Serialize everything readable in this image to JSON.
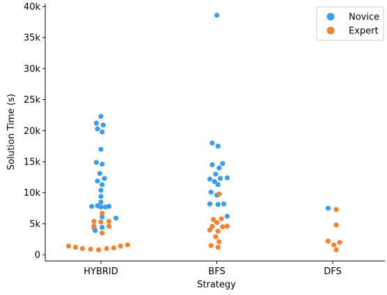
{
  "chart_data": {
    "type": "scatter",
    "subtype": "swarm",
    "xlabel": "Strategy",
    "ylabel": "Solution Time (s)",
    "categories": [
      "HYBRID",
      "BFS",
      "DFS"
    ],
    "ylim": [
      -1000,
      40500
    ],
    "yticks": [
      0,
      5000,
      10000,
      15000,
      20000,
      25000,
      30000,
      35000,
      40000
    ],
    "ytick_labels": [
      "0",
      "5k",
      "10k",
      "15k",
      "20k",
      "25k",
      "30k",
      "35k",
      "40k"
    ],
    "grid": false,
    "legend": {
      "placement": "top-right"
    },
    "series": [
      {
        "name": "Novice",
        "color": "#3b9cf0",
        "points": [
          {
            "category": "HYBRID",
            "offset": 0.0,
            "y": 22300
          },
          {
            "category": "HYBRID",
            "offset": -0.04,
            "y": 21200
          },
          {
            "category": "HYBRID",
            "offset": 0.02,
            "y": 20900
          },
          {
            "category": "HYBRID",
            "offset": -0.03,
            "y": 20300
          },
          {
            "category": "HYBRID",
            "offset": 0.01,
            "y": 19800
          },
          {
            "category": "HYBRID",
            "offset": 0.0,
            "y": 17000
          },
          {
            "category": "HYBRID",
            "offset": -0.04,
            "y": 14900
          },
          {
            "category": "HYBRID",
            "offset": 0.01,
            "y": 14600
          },
          {
            "category": "HYBRID",
            "offset": -0.01,
            "y": 13100
          },
          {
            "category": "HYBRID",
            "offset": 0.03,
            "y": 12300
          },
          {
            "category": "HYBRID",
            "offset": -0.03,
            "y": 11900
          },
          {
            "category": "HYBRID",
            "offset": 0.01,
            "y": 11300
          },
          {
            "category": "HYBRID",
            "offset": 0.0,
            "y": 10400
          },
          {
            "category": "HYBRID",
            "offset": 0.0,
            "y": 9400
          },
          {
            "category": "HYBRID",
            "offset": 0.0,
            "y": 8500
          },
          {
            "category": "HYBRID",
            "offset": -0.08,
            "y": 7800
          },
          {
            "category": "HYBRID",
            "offset": 0.0,
            "y": 7700
          },
          {
            "category": "HYBRID",
            "offset": 0.07,
            "y": 7800
          },
          {
            "category": "HYBRID",
            "offset": -0.03,
            "y": 7900
          },
          {
            "category": "HYBRID",
            "offset": 0.04,
            "y": 7700
          },
          {
            "category": "HYBRID",
            "offset": 0.01,
            "y": 6100
          },
          {
            "category": "HYBRID",
            "offset": 0.13,
            "y": 5900
          },
          {
            "category": "HYBRID",
            "offset": -0.06,
            "y": 4400
          },
          {
            "category": "HYBRID",
            "offset": 0.01,
            "y": 4400
          },
          {
            "category": "HYBRID",
            "offset": -0.05,
            "y": 3900
          },
          {
            "category": "BFS",
            "offset": 0.0,
            "y": 38600
          },
          {
            "category": "BFS",
            "offset": -0.04,
            "y": 18000
          },
          {
            "category": "BFS",
            "offset": 0.01,
            "y": 17500
          },
          {
            "category": "BFS",
            "offset": -0.04,
            "y": 14500
          },
          {
            "category": "BFS",
            "offset": 0.05,
            "y": 14700
          },
          {
            "category": "BFS",
            "offset": 0.02,
            "y": 14000
          },
          {
            "category": "BFS",
            "offset": -0.01,
            "y": 13000
          },
          {
            "category": "BFS",
            "offset": -0.06,
            "y": 12200
          },
          {
            "category": "BFS",
            "offset": 0.03,
            "y": 12300
          },
          {
            "category": "BFS",
            "offset": -0.02,
            "y": 11800
          },
          {
            "category": "BFS",
            "offset": 0.09,
            "y": 12400
          },
          {
            "category": "BFS",
            "offset": 0.01,
            "y": 11300
          },
          {
            "category": "BFS",
            "offset": -0.05,
            "y": 10100
          },
          {
            "category": "BFS",
            "offset": 0.0,
            "y": 9600
          },
          {
            "category": "BFS",
            "offset": -0.06,
            "y": 8200
          },
          {
            "category": "BFS",
            "offset": 0.01,
            "y": 8100
          },
          {
            "category": "BFS",
            "offset": 0.06,
            "y": 8200
          },
          {
            "category": "BFS",
            "offset": 0.09,
            "y": 6200
          },
          {
            "category": "DFS",
            "offset": -0.04,
            "y": 7500
          }
        ]
      },
      {
        "name": "Expert",
        "color": "#f58231",
        "points": [
          {
            "category": "HYBRID",
            "offset": 0.01,
            "y": 6700
          },
          {
            "category": "HYBRID",
            "offset": -0.06,
            "y": 5400
          },
          {
            "category": "HYBRID",
            "offset": 0.0,
            "y": 5300
          },
          {
            "category": "HYBRID",
            "offset": 0.07,
            "y": 5400
          },
          {
            "category": "HYBRID",
            "offset": -0.06,
            "y": 4600
          },
          {
            "category": "HYBRID",
            "offset": 0.07,
            "y": 4600
          },
          {
            "category": "HYBRID",
            "offset": 0.01,
            "y": 3500
          },
          {
            "category": "HYBRID",
            "offset": -0.28,
            "y": 1400
          },
          {
            "category": "HYBRID",
            "offset": -0.22,
            "y": 1200
          },
          {
            "category": "HYBRID",
            "offset": -0.16,
            "y": 1000
          },
          {
            "category": "HYBRID",
            "offset": -0.09,
            "y": 900
          },
          {
            "category": "HYBRID",
            "offset": -0.02,
            "y": 800
          },
          {
            "category": "HYBRID",
            "offset": 0.05,
            "y": 1000
          },
          {
            "category": "HYBRID",
            "offset": 0.11,
            "y": 1100
          },
          {
            "category": "HYBRID",
            "offset": 0.17,
            "y": 1400
          },
          {
            "category": "HYBRID",
            "offset": 0.23,
            "y": 1600
          },
          {
            "category": "BFS",
            "offset": 0.02,
            "y": 9800
          },
          {
            "category": "BFS",
            "offset": -0.03,
            "y": 5700
          },
          {
            "category": "BFS",
            "offset": 0.04,
            "y": 5800
          },
          {
            "category": "BFS",
            "offset": 0.0,
            "y": 5200
          },
          {
            "category": "BFS",
            "offset": 0.09,
            "y": 4600
          },
          {
            "category": "BFS",
            "offset": -0.04,
            "y": 4600
          },
          {
            "category": "BFS",
            "offset": 0.05,
            "y": 4500
          },
          {
            "category": "BFS",
            "offset": -0.06,
            "y": 4000
          },
          {
            "category": "BFS",
            "offset": 0.01,
            "y": 3800
          },
          {
            "category": "BFS",
            "offset": -0.01,
            "y": 2900
          },
          {
            "category": "BFS",
            "offset": 0.02,
            "y": 2100
          },
          {
            "category": "BFS",
            "offset": -0.05,
            "y": 1500
          },
          {
            "category": "BFS",
            "offset": 0.01,
            "y": 1200
          },
          {
            "category": "DFS",
            "offset": 0.03,
            "y": 7300
          },
          {
            "category": "DFS",
            "offset": 0.03,
            "y": 4800
          },
          {
            "category": "DFS",
            "offset": -0.04,
            "y": 2200
          },
          {
            "category": "DFS",
            "offset": 0.06,
            "y": 2000
          },
          {
            "category": "DFS",
            "offset": 0.01,
            "y": 1600
          },
          {
            "category": "DFS",
            "offset": 0.03,
            "y": 800
          }
        ]
      }
    ]
  }
}
